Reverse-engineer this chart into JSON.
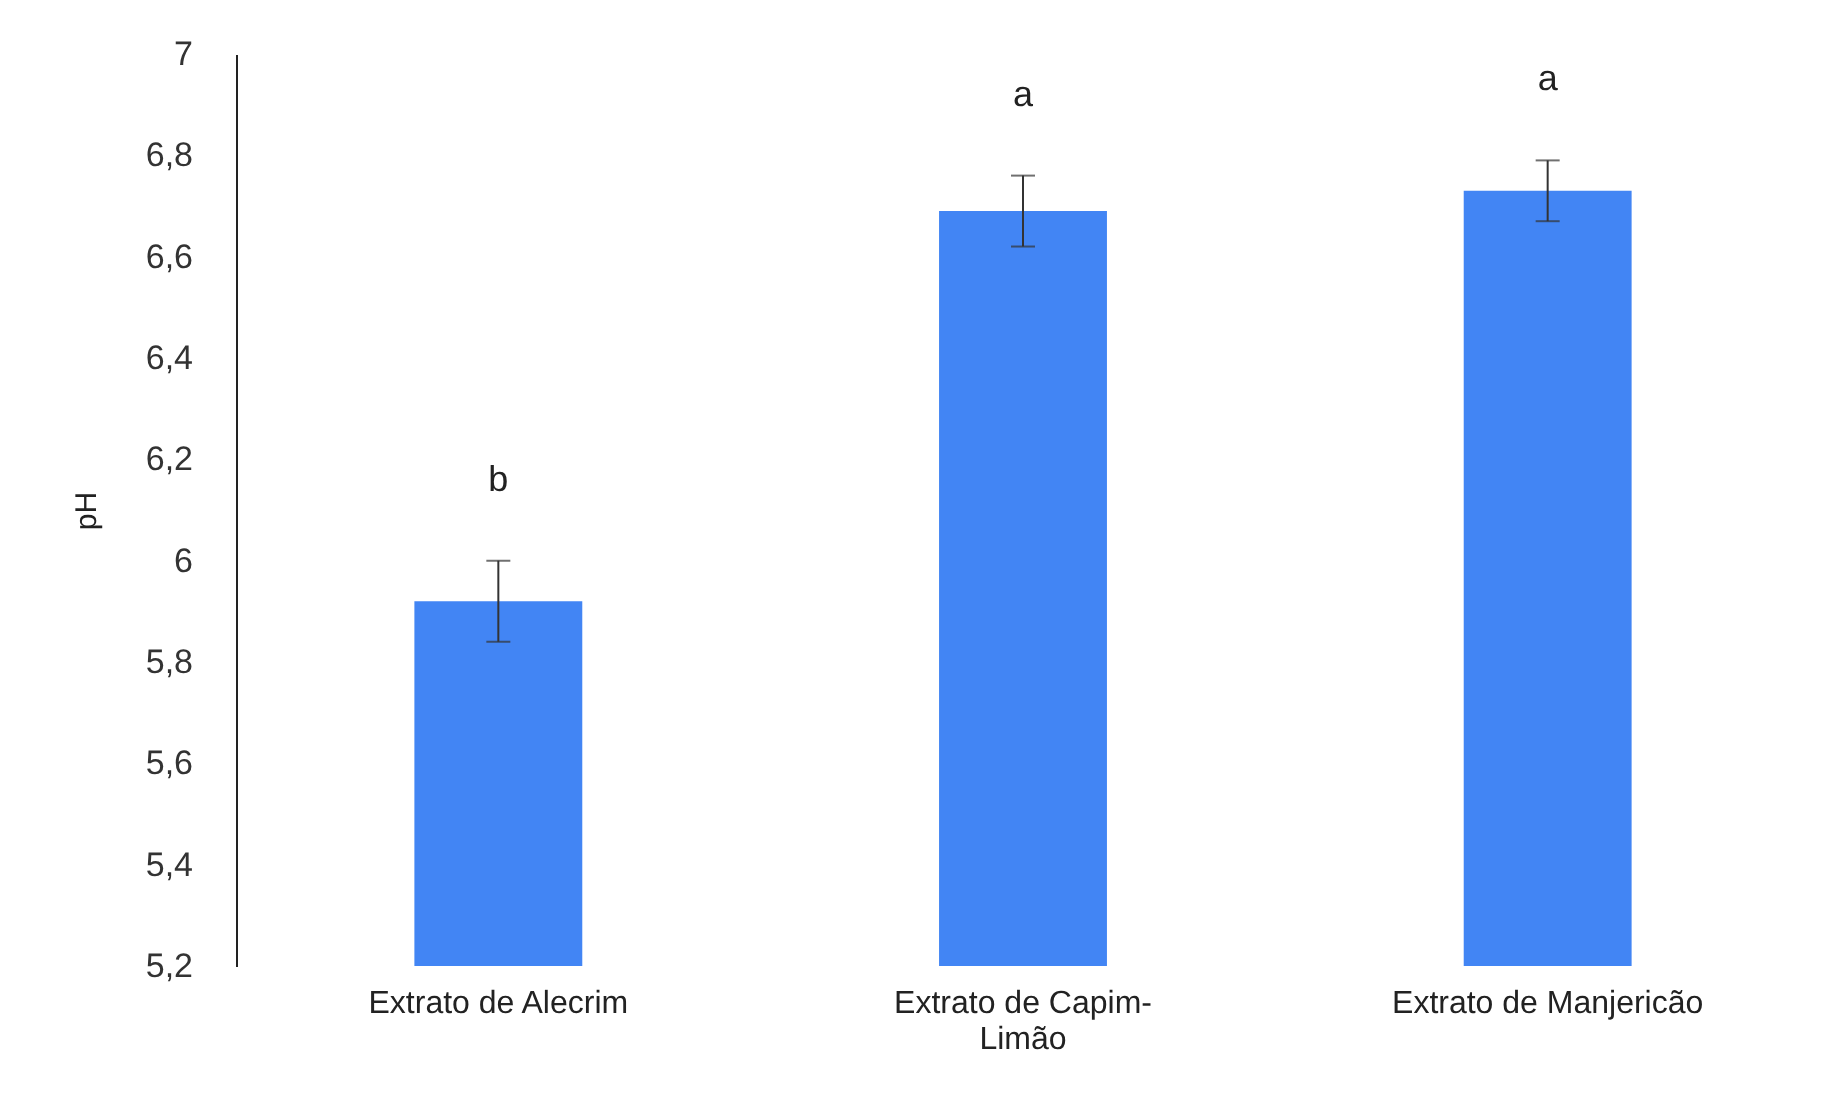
{
  "chart_data": {
    "type": "bar",
    "ylabel": "pH",
    "categories": [
      "Extrato de Alecrim",
      "Extrato de Capim-Limão",
      "Extrato de Manjericão"
    ],
    "values": [
      5.92,
      6.69,
      6.73
    ],
    "errors": [
      0.08,
      0.07,
      0.06
    ],
    "color": "#4285f4",
    "ylim": [
      5.2,
      7
    ],
    "yticks": [
      {
        "value": 5.2,
        "label": "5,2"
      },
      {
        "value": 5.4,
        "label": "5,4"
      },
      {
        "value": 5.6,
        "label": "5,6"
      },
      {
        "value": 5.8,
        "label": "5,8"
      },
      6,
      {
        "value": 6.2,
        "label": "6,2"
      },
      {
        "value": 6.4,
        "label": "6,4"
      },
      {
        "value": 6.6,
        "label": "6,6"
      },
      {
        "value": 6.8,
        "label": "6,8"
      },
      7
    ],
    "grid": false,
    "annotations": [
      "b",
      "a",
      "a"
    ]
  }
}
